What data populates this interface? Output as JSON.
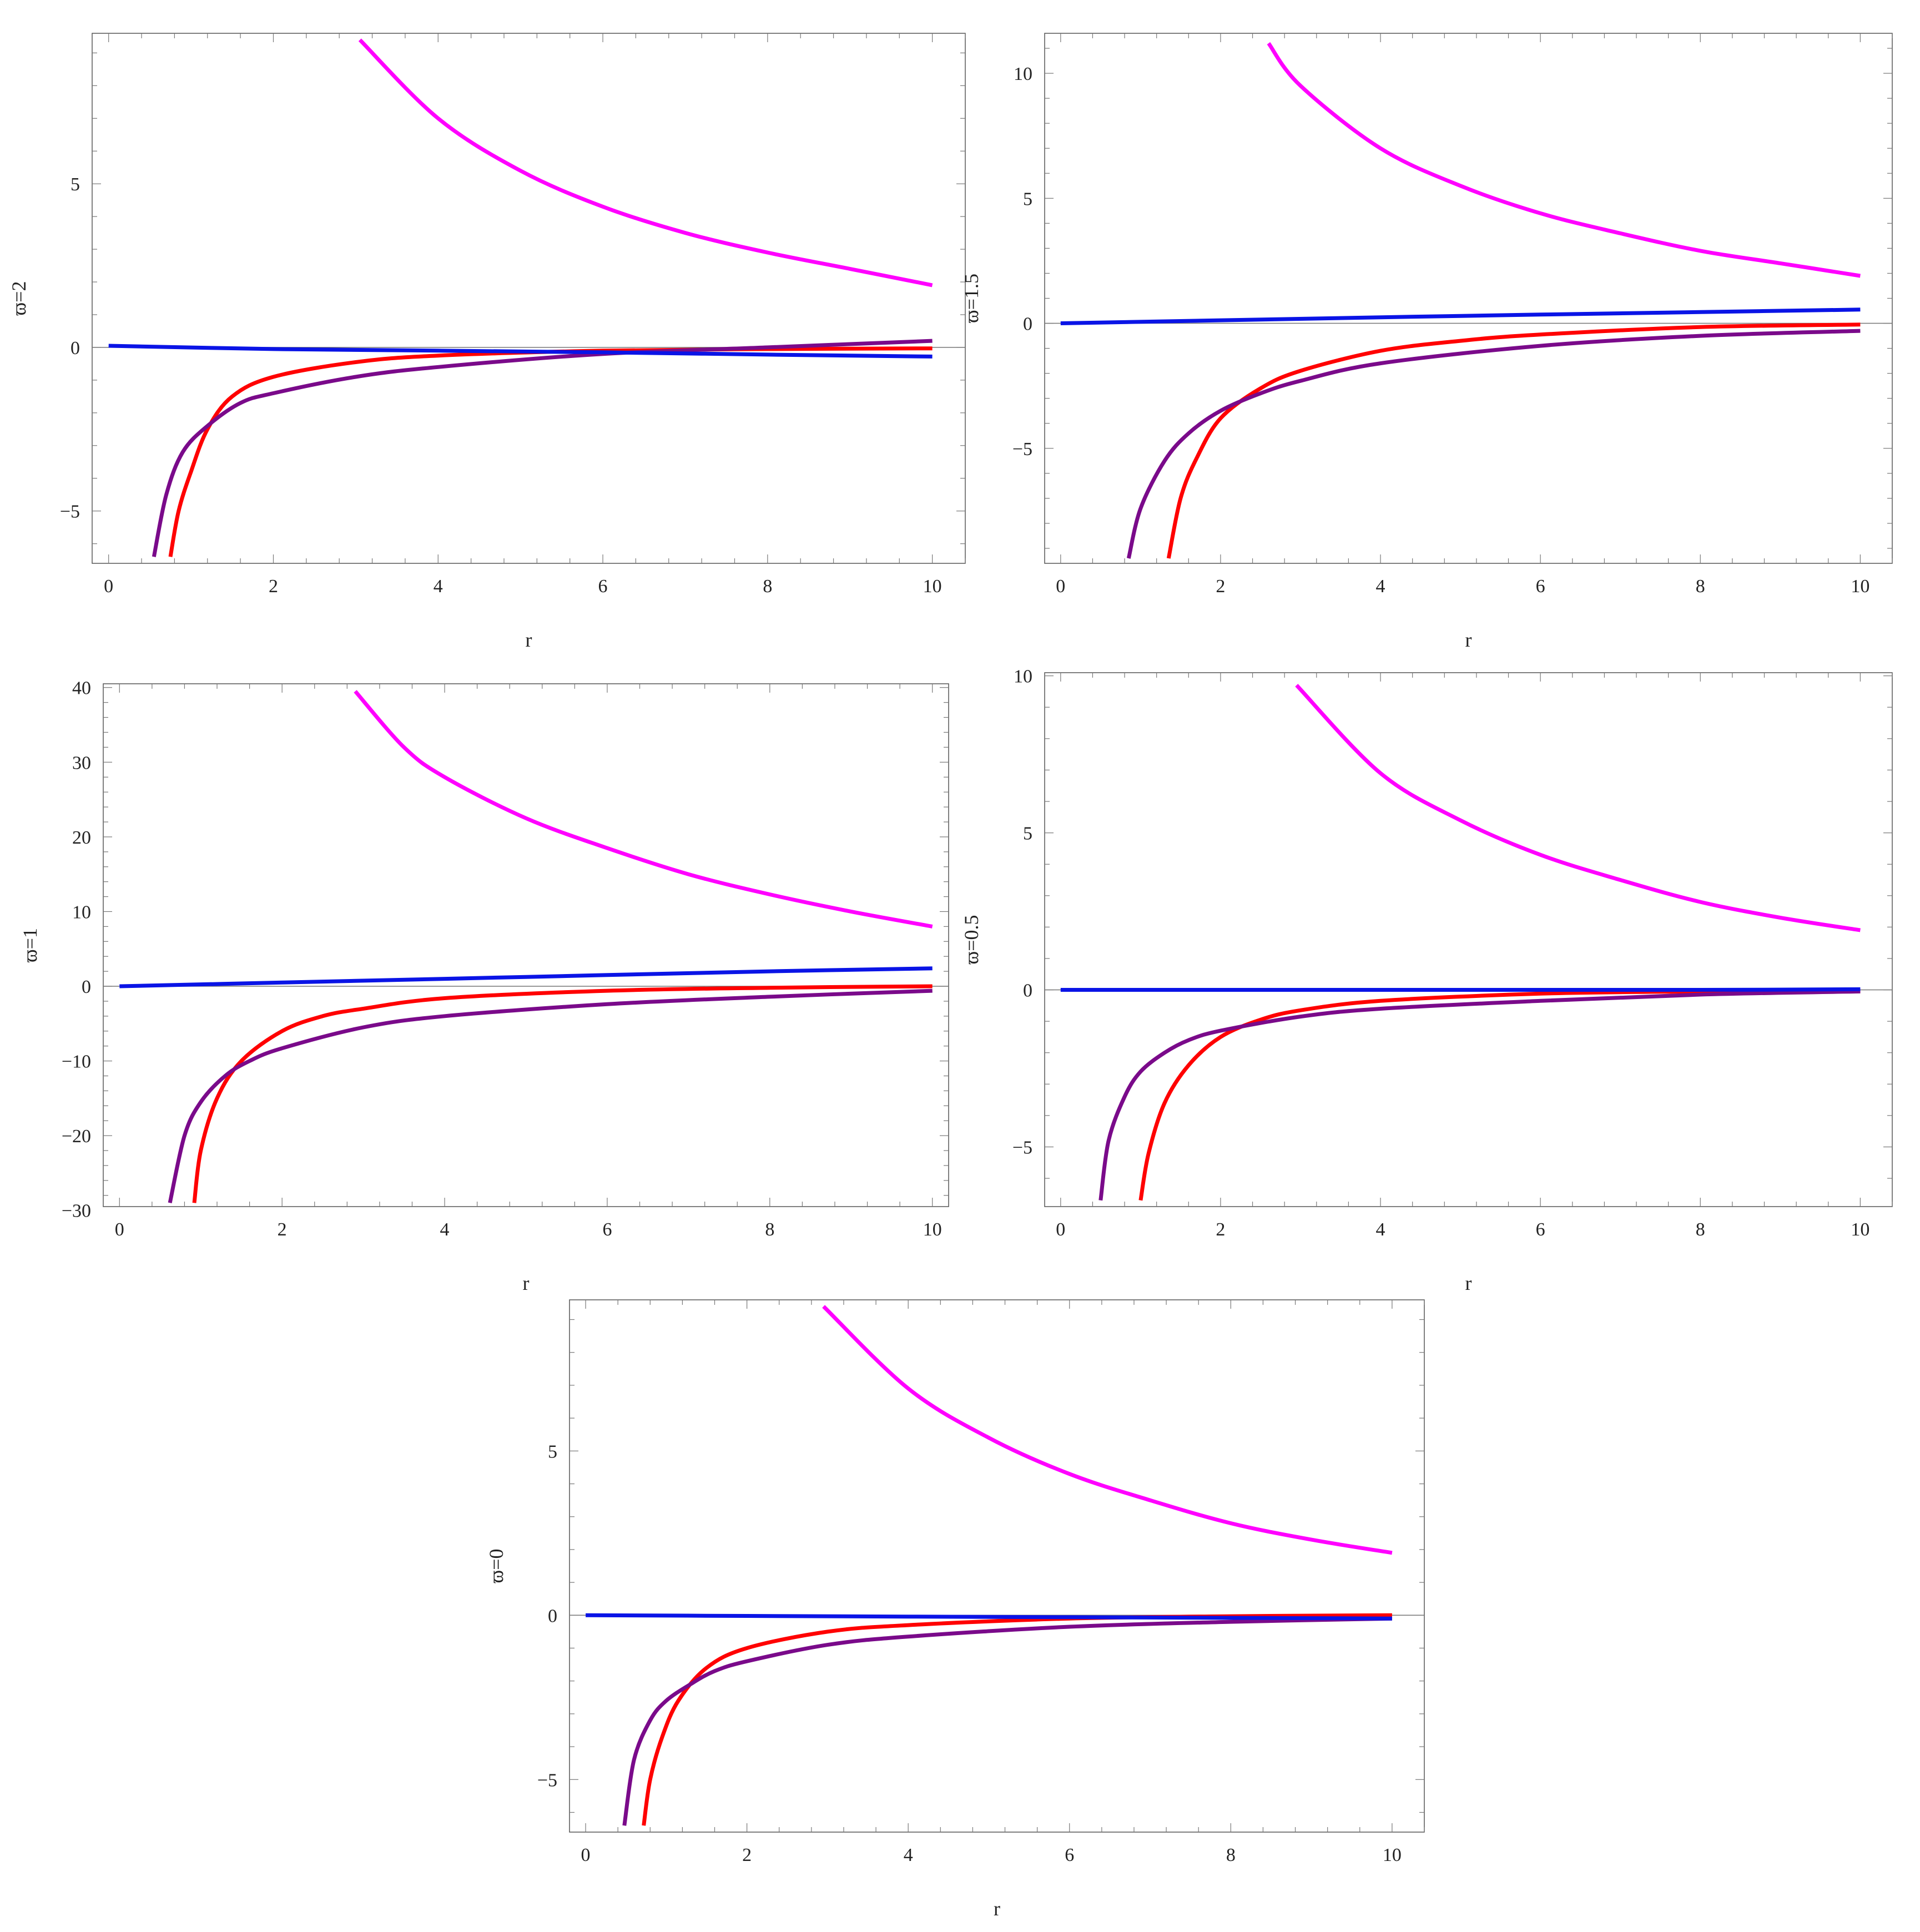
{
  "figure": {
    "series_colors": {
      "magenta": "#ff00ff",
      "red": "#ff0000",
      "purple": "#7a0a8a",
      "blue": "#0a14e6"
    }
  },
  "chart_data": [
    {
      "type": "line",
      "xlabel": "r",
      "ylabel": "ϖ=2",
      "xlim": [
        -0.2,
        10.4
      ],
      "ylim": [
        -6.6,
        9.6
      ],
      "xticks": [
        0,
        2,
        4,
        6,
        8,
        10
      ],
      "yticks": [
        -5,
        0,
        5
      ],
      "series": [
        {
          "color": "magenta",
          "x": [
            3.05,
            4,
            5,
            6,
            7,
            8,
            9,
            10
          ],
          "y": [
            9.4,
            7.0,
            5.4,
            4.3,
            3.5,
            2.9,
            2.4,
            1.9
          ]
        },
        {
          "color": "red",
          "x": [
            0.75,
            0.85,
            1.0,
            1.2,
            1.5,
            2.0,
            3.0,
            4.0,
            6.0,
            8.0,
            10.0
          ],
          "y": [
            -6.4,
            -5.0,
            -3.8,
            -2.5,
            -1.5,
            -0.9,
            -0.45,
            -0.25,
            -0.1,
            -0.05,
            -0.03
          ]
        },
        {
          "color": "purple",
          "x": [
            0.55,
            0.7,
            0.9,
            1.2,
            1.6,
            2.0,
            3.0,
            4.0,
            6.0,
            8.0,
            10.0
          ],
          "y": [
            -6.4,
            -4.5,
            -3.2,
            -2.4,
            -1.7,
            -1.4,
            -0.9,
            -0.6,
            -0.2,
            0.0,
            0.2
          ]
        },
        {
          "color": "blue",
          "x": [
            0,
            2,
            4,
            6,
            8,
            10
          ],
          "y": [
            0.05,
            -0.05,
            -0.1,
            -0.15,
            -0.22,
            -0.28
          ]
        }
      ]
    },
    {
      "type": "line",
      "xlabel": "r",
      "ylabel": "ϖ=1.5",
      "xlim": [
        -0.2,
        10.4
      ],
      "ylim": [
        -9.6,
        11.6
      ],
      "xticks": [
        0,
        2,
        4,
        6,
        8,
        10
      ],
      "yticks": [
        -5,
        0,
        5,
        10
      ],
      "series": [
        {
          "color": "magenta",
          "x": [
            2.6,
            3,
            4,
            5,
            6,
            7,
            8,
            9,
            10
          ],
          "y": [
            11.2,
            9.5,
            7.0,
            5.5,
            4.4,
            3.6,
            2.9,
            2.4,
            1.9
          ]
        },
        {
          "color": "red",
          "x": [
            1.35,
            1.5,
            1.7,
            2.0,
            2.5,
            3.0,
            4.0,
            5.0,
            6.0,
            8.0,
            10.0
          ],
          "y": [
            -9.4,
            -7.0,
            -5.4,
            -3.8,
            -2.6,
            -1.9,
            -1.1,
            -0.7,
            -0.45,
            -0.15,
            -0.05
          ]
        },
        {
          "color": "purple",
          "x": [
            0.85,
            1.0,
            1.3,
            1.6,
            2.0,
            2.5,
            3.0,
            4.0,
            6.0,
            8.0,
            10.0
          ],
          "y": [
            -9.4,
            -7.4,
            -5.5,
            -4.4,
            -3.5,
            -2.8,
            -2.3,
            -1.6,
            -0.9,
            -0.5,
            -0.3
          ]
        },
        {
          "color": "blue",
          "x": [
            0,
            2,
            4,
            6,
            8,
            10
          ],
          "y": [
            0.0,
            0.12,
            0.24,
            0.35,
            0.45,
            0.55
          ]
        }
      ]
    },
    {
      "type": "line",
      "xlabel": "r",
      "ylabel": "ϖ=1",
      "xlim": [
        -0.2,
        10.2
      ],
      "ylim": [
        -29.5,
        40.5
      ],
      "xticks": [
        0,
        2,
        4,
        6,
        8,
        10
      ],
      "yticks": [
        -30,
        -20,
        -10,
        0,
        10,
        20,
        30,
        40
      ],
      "series": [
        {
          "color": "magenta",
          "x": [
            2.9,
            3.5,
            4,
            5,
            6,
            7,
            8,
            9,
            10
          ],
          "y": [
            39.5,
            32.0,
            28.0,
            22.5,
            18.5,
            15.0,
            12.3,
            10.0,
            8.0
          ]
        },
        {
          "color": "red",
          "x": [
            0.92,
            1.0,
            1.2,
            1.5,
            2.0,
            2.5,
            3.0,
            4.0,
            6.0,
            8.0,
            10.0
          ],
          "y": [
            -29.0,
            -22.0,
            -15.0,
            -10.0,
            -6.0,
            -4.0,
            -3.0,
            -1.6,
            -0.6,
            -0.2,
            0.0
          ]
        },
        {
          "color": "purple",
          "x": [
            0.62,
            0.8,
            1.0,
            1.3,
            1.6,
            2.0,
            3.0,
            4.0,
            6.0,
            8.0,
            10.0
          ],
          "y": [
            -29.0,
            -20.0,
            -15.5,
            -12.0,
            -10.0,
            -8.3,
            -5.5,
            -4.0,
            -2.4,
            -1.4,
            -0.6
          ]
        },
        {
          "color": "blue",
          "x": [
            0,
            2,
            4,
            6,
            8,
            10
          ],
          "y": [
            0.0,
            0.5,
            1.0,
            1.5,
            2.0,
            2.4
          ]
        }
      ]
    },
    {
      "type": "line",
      "xlabel": "r",
      "ylabel": "ϖ=0.5",
      "xlim": [
        -0.2,
        10.4
      ],
      "ylim": [
        -6.9,
        10.1
      ],
      "xticks": [
        0,
        2,
        4,
        6,
        8,
        10
      ],
      "yticks": [
        -5,
        0,
        5,
        10
      ],
      "series": [
        {
          "color": "magenta",
          "x": [
            2.95,
            4,
            5,
            6,
            7,
            8,
            9,
            10
          ],
          "y": [
            9.7,
            6.9,
            5.4,
            4.3,
            3.5,
            2.8,
            2.3,
            1.9
          ]
        },
        {
          "color": "red",
          "x": [
            1.0,
            1.1,
            1.3,
            1.6,
            2.0,
            2.5,
            3.0,
            4.0,
            6.0,
            8.0,
            10.0
          ],
          "y": [
            -6.7,
            -5.2,
            -3.6,
            -2.4,
            -1.5,
            -0.95,
            -0.65,
            -0.35,
            -0.12,
            -0.05,
            -0.02
          ]
        },
        {
          "color": "purple",
          "x": [
            0.5,
            0.6,
            0.8,
            1.0,
            1.3,
            1.6,
            2.0,
            3.0,
            4.0,
            6.0,
            8.0,
            10.0
          ],
          "y": [
            -6.7,
            -4.8,
            -3.4,
            -2.6,
            -2.0,
            -1.6,
            -1.3,
            -0.85,
            -0.6,
            -0.35,
            -0.15,
            -0.05
          ]
        },
        {
          "color": "blue",
          "x": [
            0,
            2,
            4,
            6,
            8,
            10
          ],
          "y": [
            0.0,
            0.0,
            0.0,
            0.0,
            0.0,
            0.02
          ]
        }
      ]
    },
    {
      "type": "line",
      "xlabel": "r",
      "ylabel": "ϖ=0",
      "xlim": [
        -0.2,
        10.4
      ],
      "ylim": [
        -6.6,
        9.6
      ],
      "xticks": [
        0,
        2,
        4,
        6,
        8,
        10
      ],
      "yticks": [
        -5,
        0,
        5
      ],
      "series": [
        {
          "color": "magenta",
          "x": [
            2.95,
            4,
            5,
            6,
            7,
            8,
            9,
            10
          ],
          "y": [
            9.4,
            6.9,
            5.4,
            4.3,
            3.5,
            2.8,
            2.3,
            1.9
          ]
        },
        {
          "color": "red",
          "x": [
            0.72,
            0.8,
            0.95,
            1.15,
            1.5,
            2.0,
            3.0,
            4.0,
            6.0,
            8.0,
            10.0
          ],
          "y": [
            -6.4,
            -5.0,
            -3.7,
            -2.6,
            -1.6,
            -1.0,
            -0.5,
            -0.3,
            -0.1,
            -0.03,
            0.0
          ]
        },
        {
          "color": "purple",
          "x": [
            0.48,
            0.6,
            0.8,
            1.0,
            1.3,
            1.6,
            2.0,
            3.0,
            4.0,
            6.0,
            8.0,
            10.0
          ],
          "y": [
            -6.4,
            -4.4,
            -3.2,
            -2.6,
            -2.1,
            -1.7,
            -1.4,
            -0.9,
            -0.65,
            -0.35,
            -0.2,
            -0.1
          ]
        },
        {
          "color": "blue",
          "x": [
            0,
            2,
            4,
            6,
            8,
            10
          ],
          "y": [
            0.0,
            -0.02,
            -0.04,
            -0.06,
            -0.08,
            -0.1
          ]
        }
      ]
    }
  ]
}
